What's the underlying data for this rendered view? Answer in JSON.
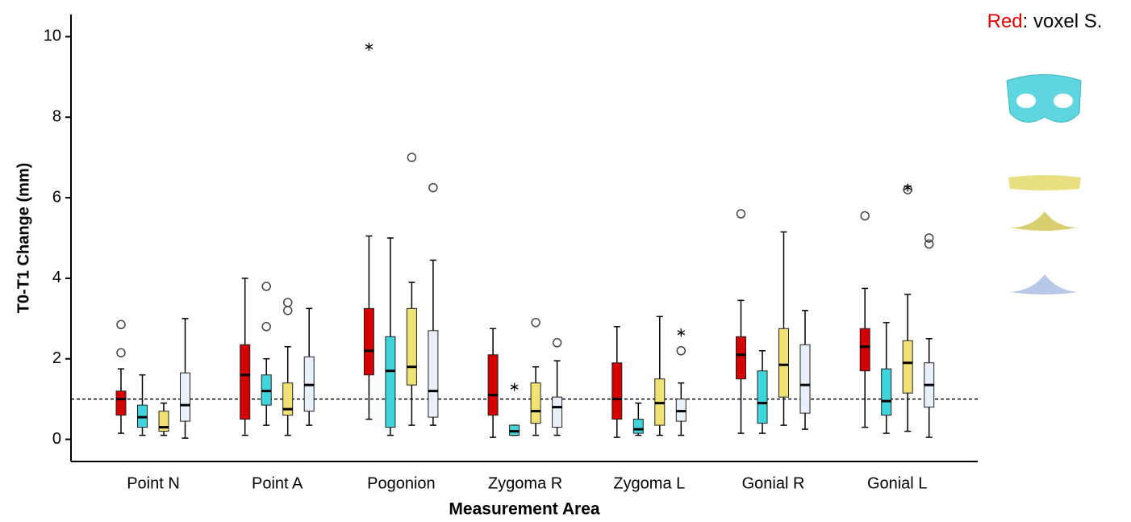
{
  "chart_data": {
    "type": "boxplot",
    "x_label": "Measurement Area",
    "y_label": "T0-T1 Change (mm)",
    "legend_key": "Red",
    "legend_text": ": voxel S.",
    "legend_key_color": "#e00000",
    "categories": [
      "Point N",
      "Point A",
      "Pogonion",
      "Zygoma R",
      "Zygoma L",
      "Gonial R",
      "Gonial L"
    ],
    "ylim": [
      -0.55,
      10.55
    ],
    "yticks": [
      0,
      2,
      4,
      6,
      8,
      10
    ],
    "reference_line": 1,
    "series": [
      {
        "color": "#d40000",
        "boxes": [
          {
            "min": 0.15,
            "q1": 0.6,
            "median": 1.0,
            "q3": 1.2,
            "max": 1.75,
            "outliers": [
              2.15,
              2.85
            ]
          },
          {
            "min": 0.1,
            "q1": 0.5,
            "median": 1.6,
            "q3": 2.35,
            "max": 4.0
          },
          {
            "min": 0.5,
            "q1": 1.6,
            "median": 2.2,
            "q3": 3.25,
            "max": 5.05,
            "extremes": [
              9.75
            ]
          },
          {
            "min": 0.05,
            "q1": 0.6,
            "median": 1.1,
            "q3": 2.1,
            "max": 2.75
          },
          {
            "min": 0.05,
            "q1": 0.5,
            "median": 1.0,
            "q3": 1.9,
            "max": 2.8
          },
          {
            "min": 0.15,
            "q1": 1.5,
            "median": 2.1,
            "q3": 2.55,
            "max": 3.45,
            "outliers": [
              5.6
            ]
          },
          {
            "min": 0.3,
            "q1": 1.7,
            "median": 2.3,
            "q3": 2.75,
            "max": 3.75,
            "outliers": [
              5.55
            ]
          }
        ]
      },
      {
        "color": "#40d4dc",
        "boxes": [
          {
            "min": 0.1,
            "q1": 0.3,
            "median": 0.55,
            "q3": 0.85,
            "max": 1.6
          },
          {
            "min": 0.35,
            "q1": 0.85,
            "median": 1.2,
            "q3": 1.6,
            "max": 2.0,
            "outliers": [
              2.8,
              3.8
            ]
          },
          {
            "min": 0.1,
            "q1": 0.3,
            "median": 1.7,
            "q3": 2.55,
            "max": 5.0
          },
          {
            "min": 0.1,
            "q1": 0.1,
            "median": 0.2,
            "q3": 0.35,
            "max": 0.35,
            "extremes": [
              1.3
            ]
          },
          {
            "min": 0.1,
            "q1": 0.15,
            "median": 0.25,
            "q3": 0.5,
            "max": 0.9
          },
          {
            "min": 0.15,
            "q1": 0.4,
            "median": 0.9,
            "q3": 1.7,
            "max": 2.2
          },
          {
            "min": 0.15,
            "q1": 0.6,
            "median": 0.95,
            "q3": 1.75,
            "max": 2.9
          }
        ]
      },
      {
        "color": "#f2e274",
        "boxes": [
          {
            "min": 0.1,
            "q1": 0.2,
            "median": 0.3,
            "q3": 0.7,
            "max": 0.9
          },
          {
            "min": 0.1,
            "q1": 0.6,
            "median": 0.75,
            "q3": 1.4,
            "max": 2.3,
            "outliers": [
              3.2,
              3.4
            ]
          },
          {
            "min": 0.35,
            "q1": 1.35,
            "median": 1.8,
            "q3": 3.25,
            "max": 3.9,
            "outliers": [
              7.0
            ]
          },
          {
            "min": 0.1,
            "q1": 0.4,
            "median": 0.7,
            "q3": 1.4,
            "max": 1.8,
            "outliers": [
              2.9
            ]
          },
          {
            "min": 0.1,
            "q1": 0.35,
            "median": 0.9,
            "q3": 1.5,
            "max": 3.05
          },
          {
            "min": 0.35,
            "q1": 1.05,
            "median": 1.85,
            "q3": 2.75,
            "max": 5.15
          },
          {
            "min": 0.2,
            "q1": 1.15,
            "median": 1.9,
            "q3": 2.45,
            "max": 3.6,
            "outliers": [
              6.2
            ],
            "extremes": [
              6.25
            ]
          }
        ]
      },
      {
        "color": "#eaf0fa",
        "boxes": [
          {
            "min": 0.03,
            "q1": 0.45,
            "median": 0.85,
            "q3": 1.65,
            "max": 3.0
          },
          {
            "min": 0.35,
            "q1": 0.7,
            "median": 1.35,
            "q3": 2.05,
            "max": 3.25
          },
          {
            "min": 0.35,
            "q1": 0.55,
            "median": 1.2,
            "q3": 2.7,
            "max": 4.45,
            "outliers": [
              6.25
            ]
          },
          {
            "min": 0.1,
            "q1": 0.3,
            "median": 0.8,
            "q3": 1.05,
            "max": 1.95,
            "outliers": [
              2.4
            ]
          },
          {
            "min": 0.1,
            "q1": 0.45,
            "median": 0.7,
            "q3": 1.0,
            "max": 1.4,
            "outliers": [
              2.2
            ],
            "extremes": [
              2.65
            ]
          },
          {
            "min": 0.25,
            "q1": 0.65,
            "median": 1.35,
            "q3": 2.35,
            "max": 3.2
          },
          {
            "min": 0.05,
            "q1": 0.8,
            "median": 1.35,
            "q3": 1.9,
            "max": 2.5,
            "outliers": [
              4.85,
              5.0
            ]
          }
        ]
      }
    ]
  }
}
